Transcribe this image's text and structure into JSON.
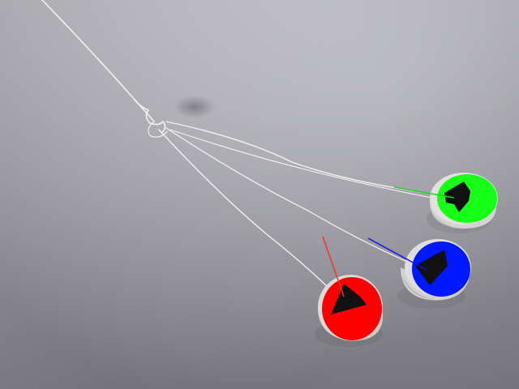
{
  "scene": {
    "description_colors": {
      "background_top": "#c9c9d1",
      "background_bottom": "#8e8e96",
      "string": "#eeeeee",
      "cylinder_body": "#d7d6d3",
      "cylinder_shadow": "#a9a8a6",
      "marker_shape": "#111111"
    },
    "markers": [
      {
        "id": "green",
        "fill": "#17ff17",
        "vector": "#1fd21f"
      },
      {
        "id": "blue",
        "fill": "#0018ff",
        "vector": "#1010e8"
      },
      {
        "id": "red",
        "fill": "#ff0000",
        "vector": "#ff2a2a"
      }
    ]
  }
}
